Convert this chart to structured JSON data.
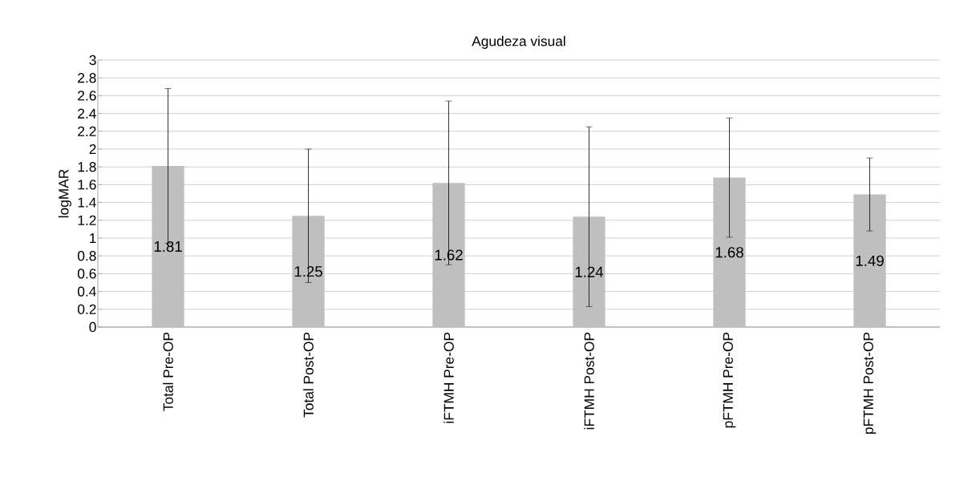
{
  "chart_data": {
    "type": "bar",
    "title": "Agudeza visual",
    "ylabel": "logMAR",
    "categories": [
      "Total Pre-OP",
      "Total Post-OP",
      "iFTMH Pre-OP",
      "iFTMH Post-OP",
      "pFTMH Pre-OP",
      "pFTMH Post-OP"
    ],
    "values": [
      1.81,
      1.25,
      1.62,
      1.24,
      1.68,
      1.49
    ],
    "errors": [
      0.87,
      0.75,
      0.92,
      1.01,
      0.67,
      0.41
    ],
    "color": "#bfbfbf",
    "ylim": [
      0,
      3
    ],
    "yticks": [
      0,
      0.2,
      0.4,
      0.6,
      0.8,
      1,
      1.2,
      1.4,
      1.6,
      1.8,
      2,
      2.2,
      2.4,
      2.6,
      2.8,
      3
    ],
    "grid": "y",
    "data_labels": true
  }
}
